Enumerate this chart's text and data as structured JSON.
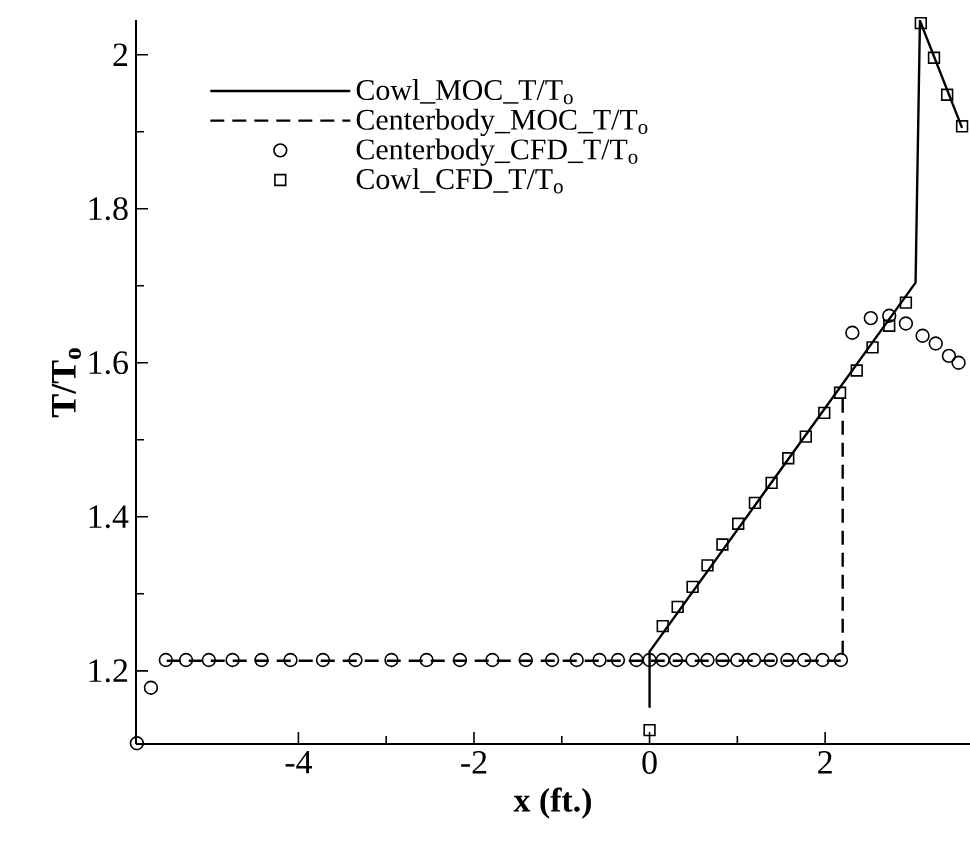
{
  "chart_data": {
    "type": "line",
    "xlabel": "x (ft.)",
    "ylabel": "T/T$_{o}$",
    "xlim": [
      -5.85,
      3.65
    ],
    "ylim": [
      1.105,
      2.045
    ],
    "xticks": [
      -4,
      -2,
      0,
      2
    ],
    "yticks": [
      1.2,
      1.4,
      1.6,
      1.8,
      2
    ],
    "legend": "top left",
    "series": [
      {
        "name": "Cowl_MOC_T/T$_{o}$",
        "type": "line",
        "line_style": "solid",
        "marker": "none",
        "color": "#000000",
        "x": [
          0,
          0,
          3.03,
          3.08,
          3.56
        ],
        "values": [
          1.152,
          1.225,
          1.704,
          2.044,
          1.905
        ]
      },
      {
        "name": "Centerbody_MOC_T/T$_{o}$",
        "type": "line",
        "line_style": "dashed",
        "marker": "none",
        "color": "#000000",
        "x": [
          -5.5,
          2.2,
          2.2
        ],
        "values": [
          1.213,
          1.213,
          1.562
        ]
      },
      {
        "name": "Centerbody_CFD_T/T$_{o}$",
        "type": "scatter",
        "marker": "circle",
        "color": "#000000",
        "x": [
          -5.84,
          -5.68,
          -5.51,
          -5.28,
          -5.02,
          -4.75,
          -4.42,
          -4.09,
          -3.72,
          -3.35,
          -2.94,
          -2.54,
          -2.16,
          -1.79,
          -1.41,
          -1.11,
          -0.83,
          -0.57,
          -0.36,
          -0.15,
          0,
          0.15,
          0.3,
          0.49,
          0.66,
          0.83,
          1.0,
          1.19,
          1.38,
          1.57,
          1.76,
          1.97,
          2.18,
          2.31,
          2.52,
          2.73,
          2.92,
          3.11,
          3.26,
          3.41,
          3.52
        ],
        "values": [
          1.106,
          1.178,
          1.214,
          1.214,
          1.214,
          1.214,
          1.214,
          1.214,
          1.214,
          1.214,
          1.214,
          1.214,
          1.214,
          1.214,
          1.214,
          1.214,
          1.214,
          1.214,
          1.214,
          1.214,
          1.214,
          1.214,
          1.214,
          1.214,
          1.214,
          1.214,
          1.214,
          1.214,
          1.214,
          1.214,
          1.214,
          1.214,
          1.214,
          1.639,
          1.658,
          1.661,
          1.651,
          1.635,
          1.625,
          1.609,
          1.6
        ]
      },
      {
        "name": "Cowl_CFD_T/T$_{o}$",
        "type": "scatter",
        "marker": "square",
        "color": "#000000",
        "x": [
          0,
          0.15,
          0.32,
          0.49,
          0.66,
          0.83,
          1.01,
          1.2,
          1.39,
          1.58,
          1.78,
          1.99,
          2.17,
          2.36,
          2.54,
          2.73,
          2.92,
          3.09,
          3.24,
          3.39,
          3.56
        ],
        "values": [
          1.123,
          1.258,
          1.283,
          1.309,
          1.337,
          1.364,
          1.391,
          1.418,
          1.444,
          1.476,
          1.504,
          1.535,
          1.561,
          1.59,
          1.62,
          1.648,
          1.678,
          2.041,
          1.996,
          1.948,
          1.907
        ]
      }
    ]
  }
}
